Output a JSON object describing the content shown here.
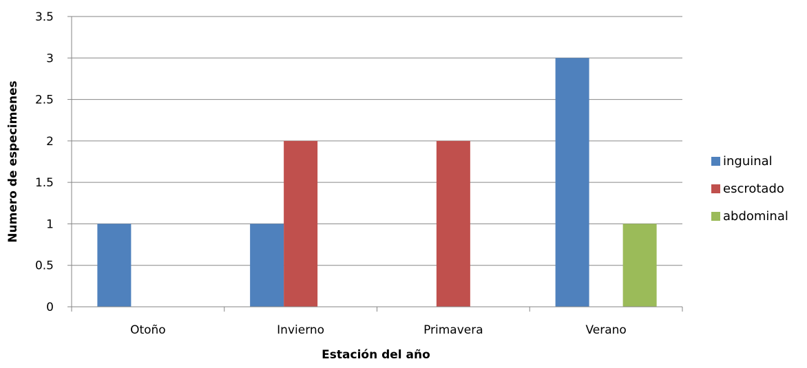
{
  "chart_data": {
    "type": "bar",
    "title": "",
    "xlabel": "Estación del año",
    "ylabel": "Numero de especimenes",
    "categories": [
      "Otoño",
      "Invierno",
      "Primavera",
      "Verano"
    ],
    "series": [
      {
        "name": "inguinal",
        "color": "#4F81BD",
        "values": [
          1,
          1,
          0,
          3
        ]
      },
      {
        "name": "escrotado",
        "color": "#C0504D",
        "values": [
          0,
          2,
          2,
          0
        ]
      },
      {
        "name": "abdominal",
        "color": "#9BBB59",
        "values": [
          0,
          0,
          0,
          1
        ]
      }
    ],
    "ylim": [
      0,
      3.5
    ],
    "yticks": [
      "0",
      "0.5",
      "1",
      "1.5",
      "2",
      "2.5",
      "3",
      "3.5"
    ],
    "grid": true,
    "legend_position": "right"
  }
}
